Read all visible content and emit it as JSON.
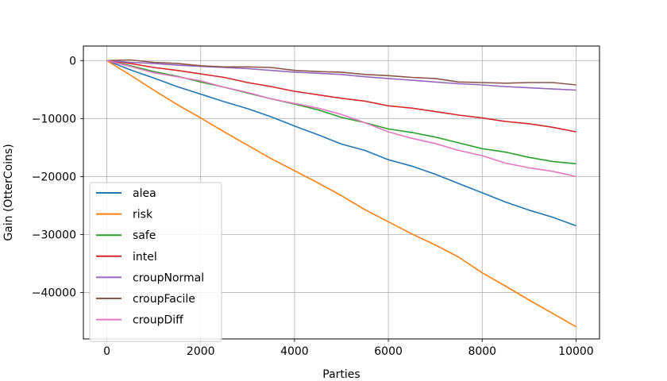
{
  "chart_data": {
    "type": "line",
    "title": "",
    "xlabel": "Parties",
    "ylabel": "Gain (OtterCoins)",
    "xlim": [
      -500,
      10500
    ],
    "ylim": [
      -48000,
      2500
    ],
    "xticks": [
      0,
      2000,
      4000,
      6000,
      8000,
      10000
    ],
    "yticks": [
      0,
      -10000,
      -20000,
      -30000,
      -40000
    ],
    "xtick_labels": [
      "0",
      "2000",
      "4000",
      "6000",
      "8000",
      "10000"
    ],
    "ytick_labels": [
      "0",
      "−10000",
      "−20000",
      "−30000",
      "−40000"
    ],
    "grid": true,
    "legend_position": "lower-left",
    "x": [
      0,
      500,
      1000,
      1500,
      2000,
      2500,
      3000,
      3500,
      4000,
      4500,
      5000,
      5500,
      6000,
      6500,
      7000,
      7500,
      8000,
      8500,
      9000,
      9500,
      10000
    ],
    "series": [
      {
        "name": "alea",
        "color": "#1f77b4",
        "values": [
          0,
          -1600,
          -3000,
          -4500,
          -5800,
          -7100,
          -8300,
          -9700,
          -11300,
          -12800,
          -14400,
          -15500,
          -17100,
          -18200,
          -19600,
          -21200,
          -22800,
          -24400,
          -25800,
          -27000,
          -28500
        ]
      },
      {
        "name": "risk",
        "color": "#ff7f0e",
        "values": [
          0,
          -2500,
          -5100,
          -7600,
          -9900,
          -12300,
          -14600,
          -16900,
          -19000,
          -21100,
          -23300,
          -25700,
          -27800,
          -29900,
          -31800,
          -33900,
          -36600,
          -38900,
          -41300,
          -43600,
          -45900
        ]
      },
      {
        "name": "safe",
        "color": "#2ca02c",
        "values": [
          0,
          -900,
          -1900,
          -2700,
          -3700,
          -4600,
          -5600,
          -6600,
          -7500,
          -8500,
          -9800,
          -10700,
          -11800,
          -12400,
          -13200,
          -14200,
          -15200,
          -15800,
          -16700,
          -17400,
          -17800
        ]
      },
      {
        "name": "intel",
        "color": "#d62728",
        "values": [
          0,
          -500,
          -1200,
          -1700,
          -2300,
          -2900,
          -3800,
          -4500,
          -5300,
          -5900,
          -6500,
          -7000,
          -7800,
          -8200,
          -8800,
          -9400,
          -9900,
          -10500,
          -10900,
          -11500,
          -12300
        ]
      },
      {
        "name": "croupNormal",
        "color": "#9467bd",
        "values": [
          0,
          -300,
          -500,
          -800,
          -1000,
          -1200,
          -1400,
          -1700,
          -2000,
          -2200,
          -2400,
          -2800,
          -3100,
          -3400,
          -3700,
          -4000,
          -4200,
          -4500,
          -4700,
          -4900,
          -5100
        ]
      },
      {
        "name": "croupFacile",
        "color": "#8c564b",
        "values": [
          0,
          100,
          -300,
          -500,
          -900,
          -1100,
          -1100,
          -1200,
          -1700,
          -1900,
          -2000,
          -2400,
          -2600,
          -2900,
          -3100,
          -3700,
          -3800,
          -3900,
          -3800,
          -3800,
          -4200
        ]
      },
      {
        "name": "croupDiff",
        "color": "#e377c2",
        "values": [
          0,
          -1000,
          -2100,
          -2800,
          -3500,
          -4600,
          -5500,
          -6600,
          -7400,
          -8200,
          -9300,
          -10700,
          -12300,
          -13400,
          -14300,
          -15500,
          -16400,
          -17700,
          -18500,
          -19100,
          -20000
        ]
      }
    ]
  }
}
